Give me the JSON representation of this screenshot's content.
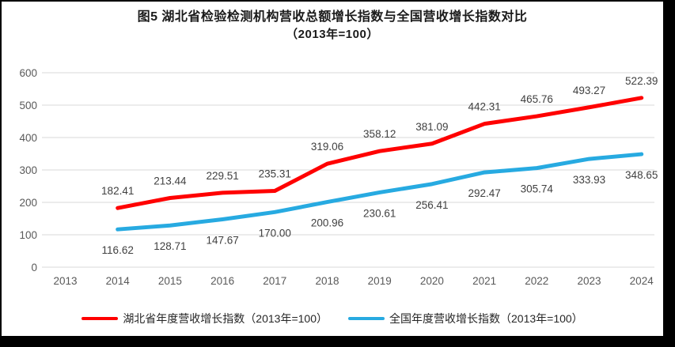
{
  "chart_data": {
    "type": "line",
    "title": "图5 湖北省检验检测机构营收总额增长指数与全国营收增长指数对比",
    "subtitle": "（2013年=100）",
    "categories": [
      "2013",
      "2014",
      "2015",
      "2016",
      "2017",
      "2018",
      "2019",
      "2020",
      "2021",
      "2022",
      "2023",
      "2024"
    ],
    "series": [
      {
        "name": "湖北省年度营收增长指数（2013年=100）",
        "color": "#FF0000",
        "values": [
          null,
          182.41,
          213.44,
          229.51,
          235.31,
          319.06,
          358.12,
          381.09,
          442.31,
          465.76,
          493.27,
          522.39
        ]
      },
      {
        "name": "全国年度营收增长指数（2013年=100）",
        "color": "#27AAE1",
        "values": [
          null,
          116.62,
          128.71,
          147.67,
          170.0,
          200.96,
          230.61,
          256.41,
          292.47,
          305.74,
          333.93,
          348.65
        ]
      }
    ],
    "xlabel": "",
    "ylabel": "",
    "ylim": [
      0,
      600
    ],
    "yticks": [
      0,
      100,
      200,
      300,
      400,
      500,
      600
    ],
    "grid": true,
    "legend_position": "bottom",
    "gridline_color": "#D9D9D9",
    "axis_label_color": "#595959",
    "data_label_color": "#404040"
  }
}
